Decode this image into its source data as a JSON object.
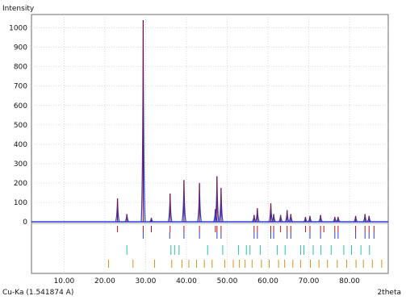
{
  "chart_data": {
    "type": "line",
    "ylabel": "Intensity",
    "xlabel": "2theta",
    "wavelength_label": "Cu-Ka (1.541874 A)",
    "xlim": [
      2.0,
      89.5
    ],
    "ylim": [
      0,
      1040
    ],
    "y_ticks": [
      0,
      100,
      200,
      300,
      400,
      500,
      600,
      700,
      800,
      900,
      1000
    ],
    "x_ticks": [
      10.0,
      20.0,
      30.0,
      40.0,
      50.0,
      60.0,
      70.0,
      80.0
    ],
    "x_tick_labels": [
      "10.00",
      "20.00",
      "30.00",
      "40.00",
      "50.00",
      "60.00",
      "70.00",
      "80.00"
    ],
    "grid": true,
    "colors": {
      "observed": "#8a1030",
      "calculated": "#2a3fd6",
      "baseline": "#2a3fd6",
      "reflections": [
        "#b01818",
        "#2a3fd6",
        "#2bbfa8",
        "#d9901a"
      ]
    },
    "peaks": [
      {
        "x": 23.1,
        "y": 120
      },
      {
        "x": 25.4,
        "y": 40
      },
      {
        "x": 29.4,
        "y": 1040
      },
      {
        "x": 31.4,
        "y": 20
      },
      {
        "x": 36.0,
        "y": 145
      },
      {
        "x": 39.4,
        "y": 215
      },
      {
        "x": 43.2,
        "y": 200
      },
      {
        "x": 47.1,
        "y": 65
      },
      {
        "x": 47.5,
        "y": 235
      },
      {
        "x": 48.5,
        "y": 175
      },
      {
        "x": 56.6,
        "y": 35
      },
      {
        "x": 57.4,
        "y": 70
      },
      {
        "x": 60.7,
        "y": 95
      },
      {
        "x": 61.4,
        "y": 40
      },
      {
        "x": 63.1,
        "y": 35
      },
      {
        "x": 64.7,
        "y": 60
      },
      {
        "x": 65.6,
        "y": 40
      },
      {
        "x": 69.2,
        "y": 25
      },
      {
        "x": 70.3,
        "y": 30
      },
      {
        "x": 72.9,
        "y": 35
      },
      {
        "x": 76.4,
        "y": 25
      },
      {
        "x": 77.2,
        "y": 25
      },
      {
        "x": 81.5,
        "y": 30
      },
      {
        "x": 83.8,
        "y": 40
      },
      {
        "x": 84.8,
        "y": 30
      }
    ],
    "reflection_rows": [
      [
        23.1,
        29.4,
        31.4,
        36.0,
        39.4,
        43.2,
        47.1,
        47.5,
        48.5,
        56.6,
        57.4,
        60.7,
        61.4,
        63.1,
        64.7,
        65.6,
        69.2,
        70.3,
        72.9,
        73.7,
        76.4,
        77.2,
        81.5,
        83.8,
        84.8,
        86.0
      ],
      [
        29.4,
        35.9,
        39.4,
        43.2,
        47.5,
        48.5,
        56.6,
        57.4,
        60.7,
        61.4,
        64.7,
        65.6,
        70.3,
        72.9,
        76.4,
        77.2,
        81.5,
        83.8,
        84.8,
        86.0
      ],
      [
        25.4,
        36.2,
        37.1,
        38.2,
        45.2,
        48.9,
        52.8,
        54.7,
        55.6,
        58.1,
        62.3,
        64.2,
        68.0,
        68.8,
        71.1,
        73.0,
        75.5,
        78.6,
        80.5,
        82.8,
        84.9
      ],
      [
        20.9,
        26.9,
        32.2,
        36.4,
        38.9,
        40.6,
        42.5,
        44.4,
        46.3,
        49.4,
        51.5,
        53.0,
        54.4,
        56.1,
        58.4,
        60.3,
        62.6,
        64.1,
        66.1,
        68.0,
        70.4,
        72.5,
        74.6,
        77.0,
        79.3,
        81.6,
        83.4,
        85.6,
        87.9
      ]
    ]
  }
}
